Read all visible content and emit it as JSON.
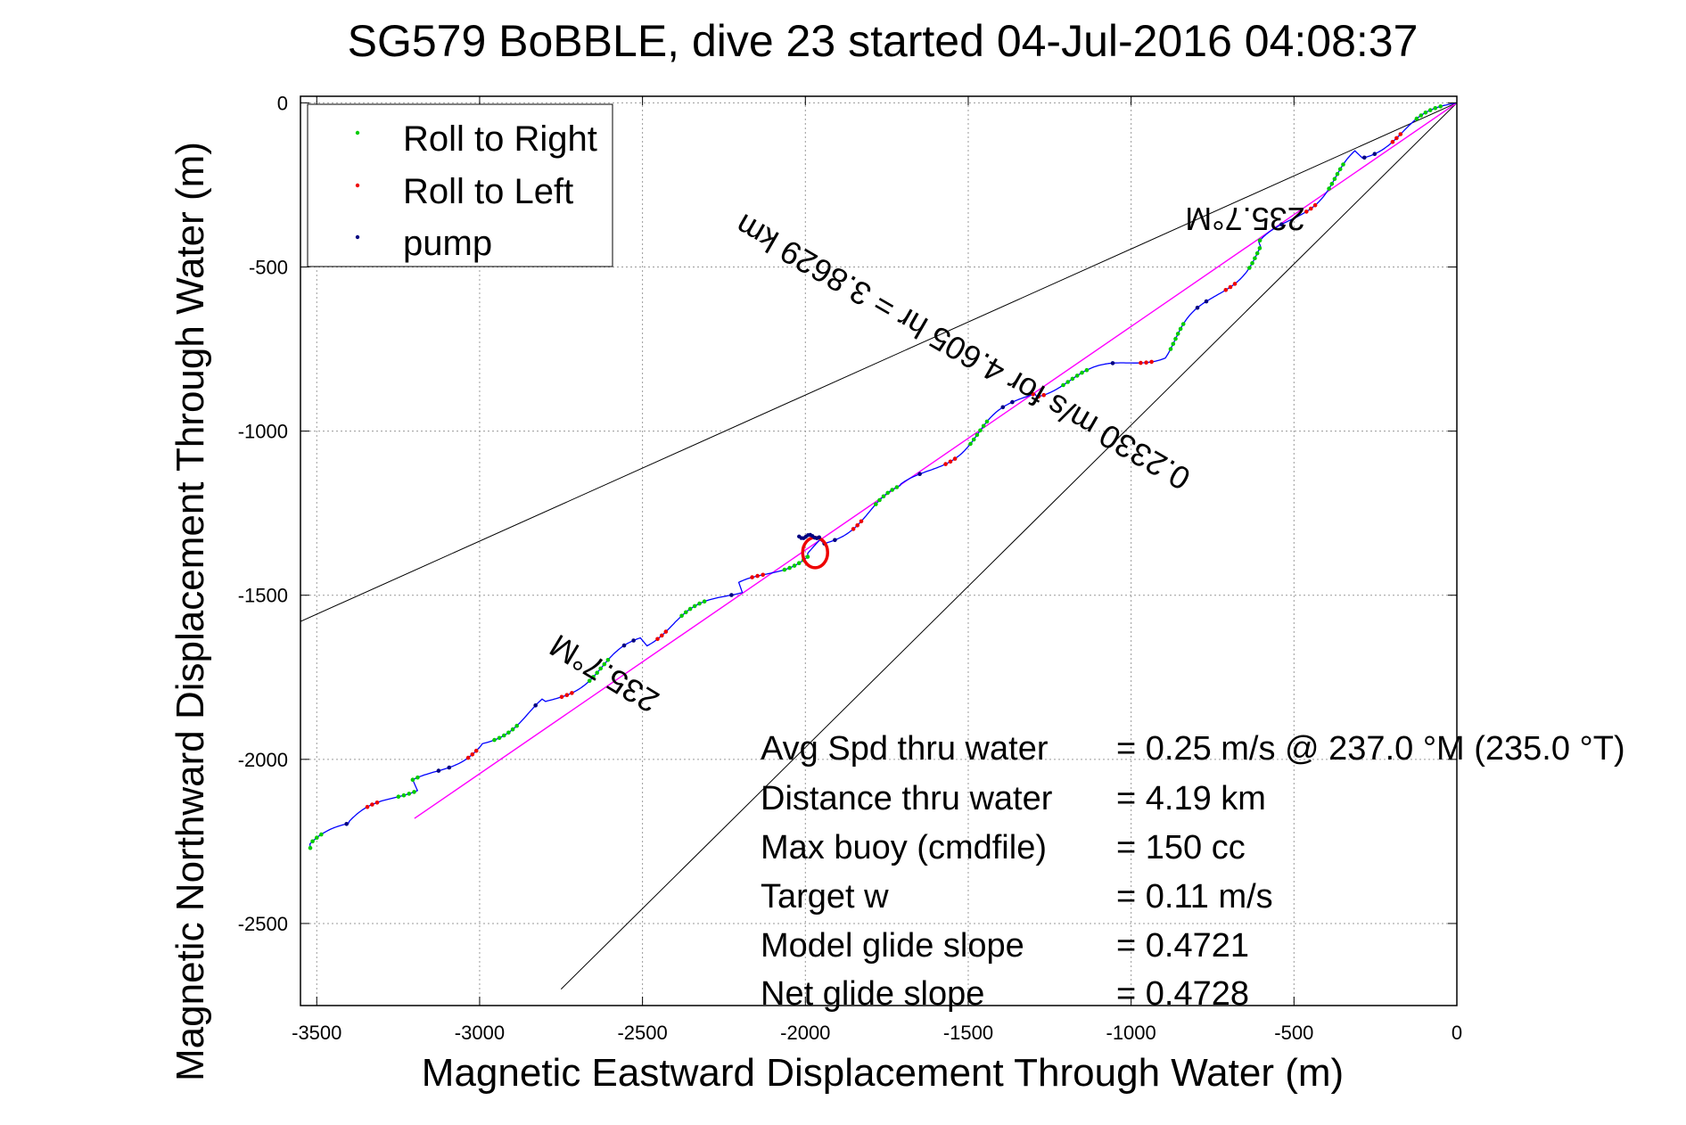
{
  "chart_data": {
    "type": "line",
    "title": "SG579 BoBBLE, dive 23 started 04-Jul-2016 04:08:37",
    "xlabel": "Magnetic Eastward Displacement Through Water (m)",
    "ylabel": "Magnetic Northward Displacement Through Water (m)",
    "xlim": [
      -3550,
      0
    ],
    "ylim": [
      -2750,
      20
    ],
    "xticks": [
      -3500,
      -3000,
      -2500,
      -2000,
      -1500,
      -1000,
      -500,
      0
    ],
    "xtick_labels": [
      "-3500",
      "-3000",
      "-2500",
      "-2000",
      "-1500",
      "-1000",
      "-500",
      "0"
    ],
    "yticks": [
      0,
      -500,
      -1000,
      -1500,
      -2000,
      -2500
    ],
    "ytick_labels": [
      "0",
      "-500",
      "-1000",
      "-1500",
      "-2000",
      "-2500"
    ],
    "grid": true,
    "legend_position": "top-left",
    "legend": [
      {
        "label": "Roll to Right",
        "color": "#00cc00"
      },
      {
        "label": "Roll to Left",
        "color": "#ee0000"
      },
      {
        "label": "pump",
        "color": "#000080"
      }
    ],
    "colors": {
      "track": "#0000ff",
      "roll_right": "#00cc00",
      "roll_left": "#ee0000",
      "pump": "#000080",
      "course_line": "#ff00ff",
      "cone_lines": "#000000"
    },
    "series": [
      {
        "kind": "dive-track",
        "x": [
          0,
          -300,
          -600,
          -900,
          -1300,
          -1700,
          -1950,
          -2000,
          -2200,
          -2500,
          -2800,
          -3000,
          -3200,
          -3400,
          -3520
        ],
        "y": [
          0,
          -160,
          -440,
          -760,
          -880,
          -1180,
          -1340,
          -1370,
          -1480,
          -1640,
          -1830,
          -1950,
          -2080,
          -2200,
          -2270
        ]
      },
      {
        "kind": "course-line",
        "x": [
          0,
          -3200
        ],
        "y": [
          0,
          -2180
        ]
      },
      {
        "kind": "cone-line",
        "x": [
          0,
          -3550
        ],
        "y": [
          0,
          -1580
        ]
      },
      {
        "kind": "cone-line",
        "x": [
          0,
          -2750
        ],
        "y": [
          0,
          -2700
        ]
      }
    ],
    "annotations": [
      {
        "text": "235.7°M",
        "x": -650,
        "y": -320,
        "rotation": 180
      },
      {
        "text": "0.2330 m/s for 4.605 hr = 3.8629 km",
        "x": -1500,
        "y": -730,
        "rotation": 210
      },
      {
        "text": "235.7°M",
        "x": -2600,
        "y": -1710,
        "rotation": 211
      }
    ]
  },
  "stats": [
    {
      "label": "Avg Spd thru water",
      "value": "=  0.25 m/s @ 237.0 °M (235.0 °T)"
    },
    {
      "label": "Distance thru water",
      "value": "=  4.19 km"
    },
    {
      "label": "Max buoy (cmdfile)",
      "value": "= 150 cc"
    },
    {
      "label": "Target w",
      "value": "= 0.11 m/s"
    },
    {
      "label": "Model glide slope",
      "value": "= 0.4721"
    },
    {
      "label": "Net glide slope",
      "value": "= 0.4728"
    }
  ]
}
